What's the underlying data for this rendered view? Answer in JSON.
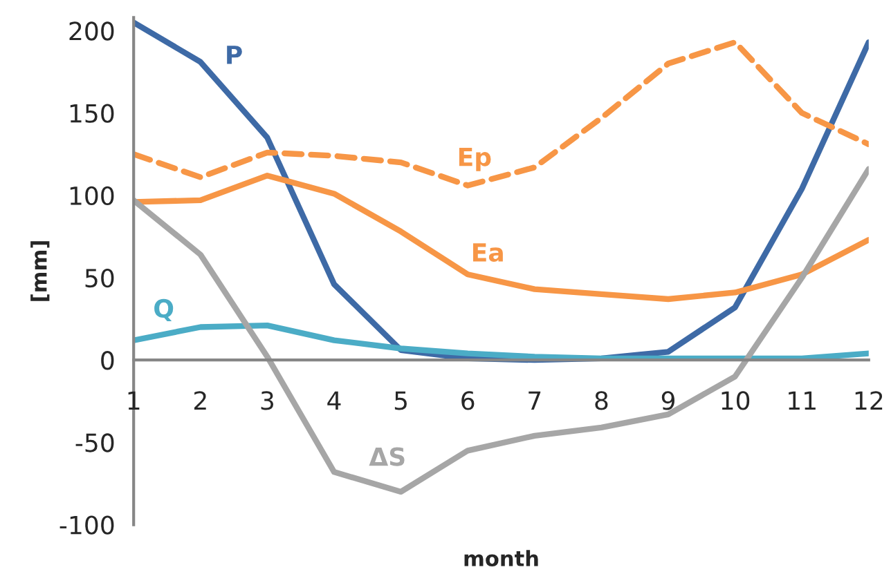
{
  "chart_data": {
    "type": "line",
    "xlabel": "month",
    "ylabel": "[mm]",
    "x": [
      1,
      2,
      3,
      4,
      5,
      6,
      7,
      8,
      9,
      10,
      11,
      12
    ],
    "xlim": [
      1,
      12
    ],
    "xticks": [
      1,
      2,
      3,
      4,
      5,
      6,
      7,
      8,
      9,
      10,
      11,
      12
    ],
    "ylim": [
      -100,
      208
    ],
    "yticks": [
      -100,
      -50,
      0,
      50,
      100,
      150,
      200
    ],
    "grid": false,
    "legend": false,
    "series": [
      {
        "name": "P",
        "color": "#3e6aa6",
        "line_style": "solid",
        "values": [
          205,
          181,
          135,
          46,
          6,
          1,
          0,
          1,
          5,
          32,
          104,
          193
        ]
      },
      {
        "name": "Ep",
        "color": "#f79646",
        "line_style": "dashed",
        "values": [
          125,
          111,
          126,
          124,
          120,
          106,
          117,
          147,
          180,
          193,
          150,
          131
        ]
      },
      {
        "name": "Ea",
        "color": "#f79646",
        "line_style": "solid",
        "values": [
          96,
          97,
          112,
          101,
          78,
          52,
          43,
          40,
          37,
          41,
          52,
          73
        ]
      },
      {
        "name": "Q",
        "color": "#4bacc6",
        "line_style": "solid",
        "values": [
          12,
          20,
          21,
          12,
          7,
          4,
          2,
          1,
          1,
          1,
          1,
          4
        ]
      },
      {
        "name": "ΔS",
        "color": "#a6a6a6",
        "line_style": "solid",
        "values": [
          97,
          64,
          2,
          -68,
          -80,
          -55,
          -46,
          -41,
          -33,
          -10,
          50,
          116
        ]
      }
    ]
  }
}
